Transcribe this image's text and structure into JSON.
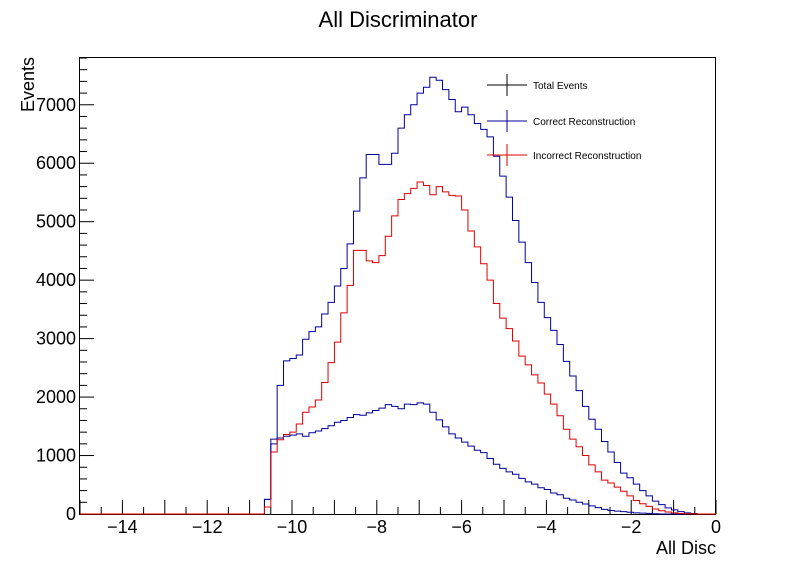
{
  "chart_data": {
    "type": "line",
    "style": "step-histogram",
    "title": "All Discriminator",
    "xlabel": "All Disc",
    "ylabel": "Events",
    "xlim": [
      -15,
      0
    ],
    "ylim": [
      0,
      7800
    ],
    "xticks": [
      -14,
      -12,
      -10,
      -8,
      -6,
      -4,
      -2,
      0
    ],
    "yticks": [
      0,
      1000,
      2000,
      3000,
      4000,
      5000,
      6000,
      7000
    ],
    "grid": false,
    "legend_position": "top-right",
    "bin_edges_start": -15,
    "bin_width": 0.15,
    "series": [
      {
        "name": "Total Events",
        "color": "#000000",
        "values": [
          0,
          0,
          0,
          0,
          0,
          0,
          0,
          0,
          0,
          0,
          0,
          0,
          0,
          0,
          0,
          0,
          0,
          0,
          0,
          0,
          0,
          0,
          0,
          0,
          0,
          0,
          0,
          0,
          0,
          250,
          1280,
          2200,
          2620,
          2660,
          2720,
          2990,
          3120,
          3200,
          3420,
          3620,
          3900,
          4200,
          4620,
          5180,
          5750,
          6150,
          6150,
          5980,
          5980,
          6170,
          6600,
          6830,
          7000,
          7200,
          7300,
          7470,
          7420,
          7260,
          7090,
          6880,
          6960,
          6830,
          6680,
          6580,
          6450,
          6120,
          5780,
          5420,
          5020,
          4650,
          4300,
          3960,
          3620,
          3360,
          3140,
          2900,
          2610,
          2360,
          2110,
          1840,
          1620,
          1450,
          1240,
          1060,
          880,
          700,
          620,
          510,
          400,
          310,
          220,
          160,
          105,
          70,
          40,
          20,
          8,
          0,
          0,
          0
        ]
      },
      {
        "name": "Correct Reconstruction",
        "color": "#000099",
        "values": [
          0,
          0,
          0,
          0,
          0,
          0,
          0,
          0,
          0,
          0,
          0,
          0,
          0,
          0,
          0,
          0,
          0,
          0,
          0,
          0,
          0,
          0,
          0,
          0,
          0,
          0,
          0,
          0,
          0,
          250,
          1200,
          1300,
          1330,
          1350,
          1370,
          1330,
          1390,
          1420,
          1460,
          1510,
          1570,
          1600,
          1650,
          1700,
          1690,
          1730,
          1770,
          1810,
          1870,
          1840,
          1800,
          1880,
          1870,
          1900,
          1880,
          1740,
          1610,
          1490,
          1370,
          1300,
          1230,
          1160,
          1090,
          1050,
          950,
          850,
          780,
          720,
          680,
          610,
          550,
          510,
          450,
          420,
          360,
          330,
          270,
          240,
          200,
          170,
          140,
          110,
          80,
          60,
          50,
          40,
          30,
          20,
          15,
          10,
          5,
          0,
          0,
          0,
          0,
          0,
          0,
          0,
          0,
          0
        ]
      },
      {
        "name": "Incorrect Reconstruction",
        "color": "#dd0000",
        "values": [
          0,
          0,
          0,
          0,
          0,
          0,
          0,
          0,
          0,
          0,
          0,
          0,
          0,
          0,
          0,
          0,
          0,
          0,
          0,
          0,
          0,
          0,
          0,
          0,
          0,
          0,
          0,
          0,
          0,
          120,
          1060,
          1270,
          1360,
          1400,
          1540,
          1740,
          1830,
          1950,
          2250,
          2590,
          2940,
          3440,
          3910,
          4510,
          4510,
          4330,
          4300,
          4420,
          4750,
          5100,
          5380,
          5480,
          5570,
          5680,
          5620,
          5460,
          5600,
          5510,
          5450,
          5440,
          5200,
          4840,
          4570,
          4280,
          4000,
          3600,
          3350,
          3170,
          2960,
          2700,
          2550,
          2380,
          2240,
          2050,
          1880,
          1680,
          1450,
          1280,
          1150,
          1000,
          840,
          720,
          580,
          530,
          460,
          390,
          310,
          230,
          175,
          130,
          85,
          55,
          35,
          20,
          8,
          4,
          2,
          0,
          0,
          0
        ]
      }
    ]
  }
}
